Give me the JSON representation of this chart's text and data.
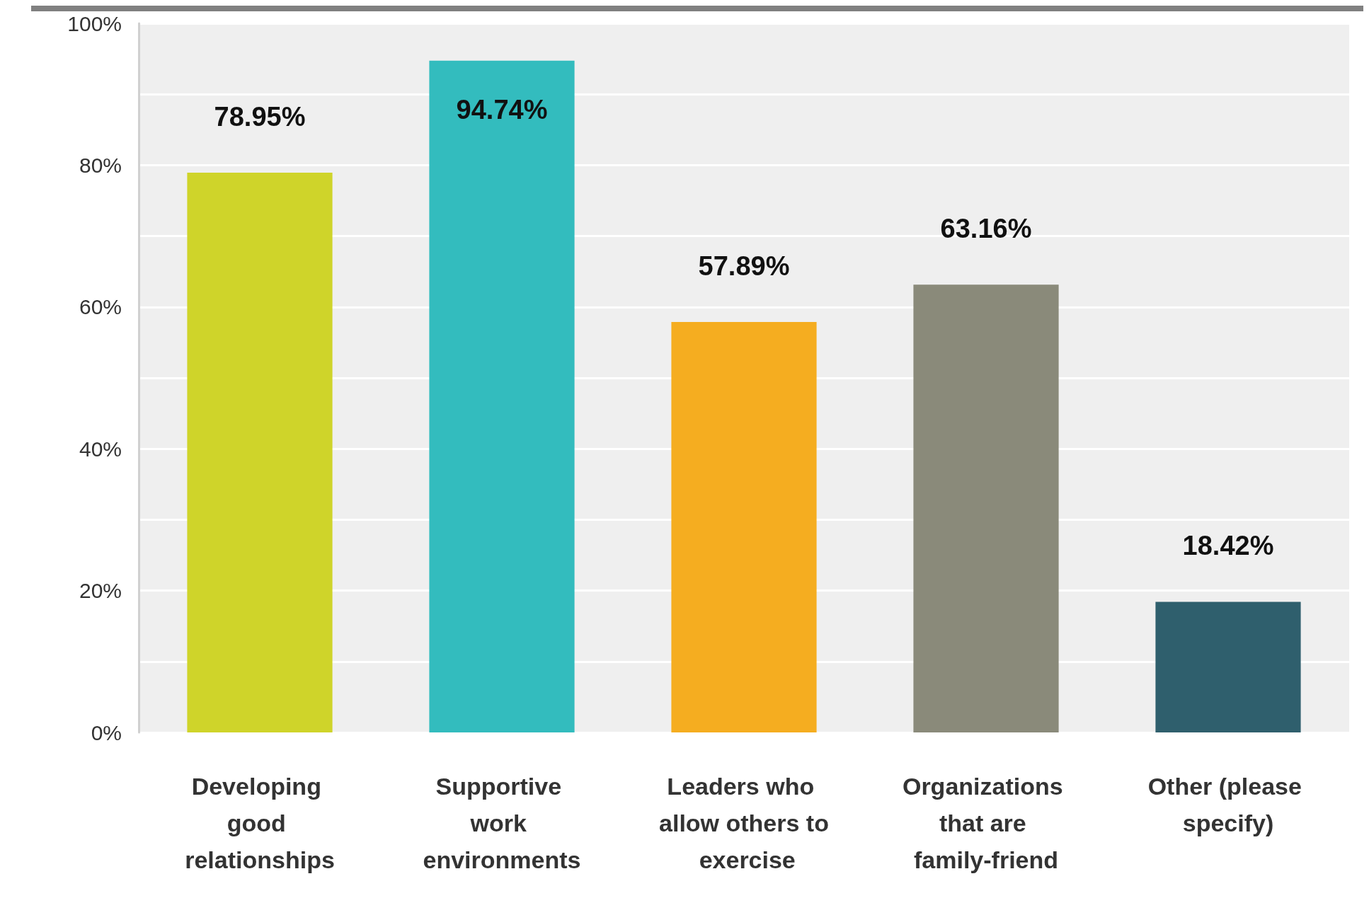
{
  "chart_data": {
    "type": "bar",
    "categories": [
      "Developing good relationships",
      "Supportive work environments",
      "Leaders who allow others to exercise",
      "Organizations that are family-friend",
      "Other (please specify)"
    ],
    "values": [
      78.95,
      94.74,
      57.89,
      63.16,
      18.42
    ],
    "colors": [
      "#cfd42a",
      "#33bcbe",
      "#f5ad20",
      "#8a8a7a",
      "#2f5f6d"
    ],
    "value_labels": [
      "78.95%",
      "94.74%",
      "57.89%",
      "63.16%",
      "18.42%"
    ],
    "ylim": [
      0,
      100
    ],
    "yticks": [
      {
        "value": 0,
        "label": "0%"
      },
      {
        "value": 10,
        "label": null
      },
      {
        "value": 20,
        "label": "20%"
      },
      {
        "value": 30,
        "label": null
      },
      {
        "value": 40,
        "label": "40%"
      },
      {
        "value": 50,
        "label": null
      },
      {
        "value": 60,
        "label": "60%"
      },
      {
        "value": 70,
        "label": null
      },
      {
        "value": 80,
        "label": "80%"
      },
      {
        "value": 90,
        "label": null
      },
      {
        "value": 100,
        "label": "100%"
      }
    ],
    "grid": "y"
  }
}
